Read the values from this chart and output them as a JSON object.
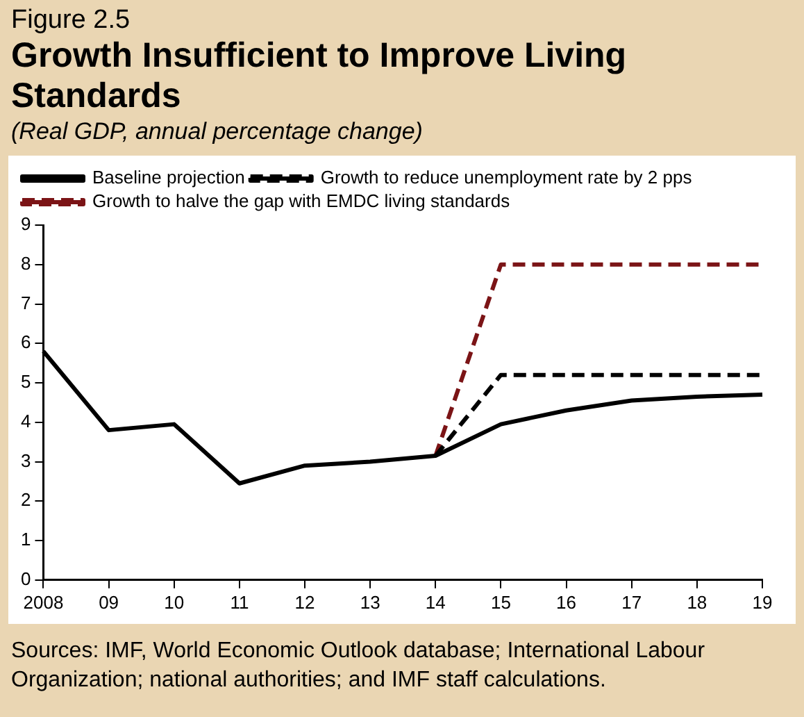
{
  "chart_data": {
    "type": "line",
    "title": "Growth Insufficient to Improve Living Standards",
    "subtitle": "(Real GDP, annual percentage change)",
    "annotations": [
      "Figure 2.5",
      "Sources: IMF, World Economic Outlook database; International Labour Organization; national authorities; and IMF staff calculations."
    ],
    "categories": [
      "2008",
      "09",
      "10",
      "11",
      "12",
      "13",
      "14",
      "15",
      "16",
      "17",
      "18",
      "19"
    ],
    "series": [
      {
        "name": "Baseline projection",
        "color": "#000000",
        "line_style": "solid",
        "values": [
          5.8,
          3.8,
          3.95,
          2.45,
          2.9,
          3.0,
          3.15,
          3.95,
          4.3,
          4.55,
          4.65,
          4.7
        ]
      },
      {
        "name": "Growth to reduce unemployment rate by 2 pps",
        "color": "#000000",
        "line_style": "dashed",
        "values": [
          null,
          null,
          null,
          null,
          null,
          null,
          3.15,
          5.2,
          5.2,
          5.2,
          5.2,
          5.2
        ]
      },
      {
        "name": "Growth to halve the gap with EMDC living standards",
        "color": "#7b1416",
        "line_style": "dashed",
        "values": [
          null,
          null,
          null,
          null,
          null,
          null,
          3.15,
          8.0,
          8.0,
          8.0,
          8.0,
          8.0
        ]
      }
    ],
    "ylim": [
      0,
      9
    ],
    "yticks": [
      0,
      1,
      2,
      3,
      4,
      5,
      6,
      7,
      8,
      9
    ],
    "grid": false,
    "legend": "top left",
    "marker": "none"
  }
}
